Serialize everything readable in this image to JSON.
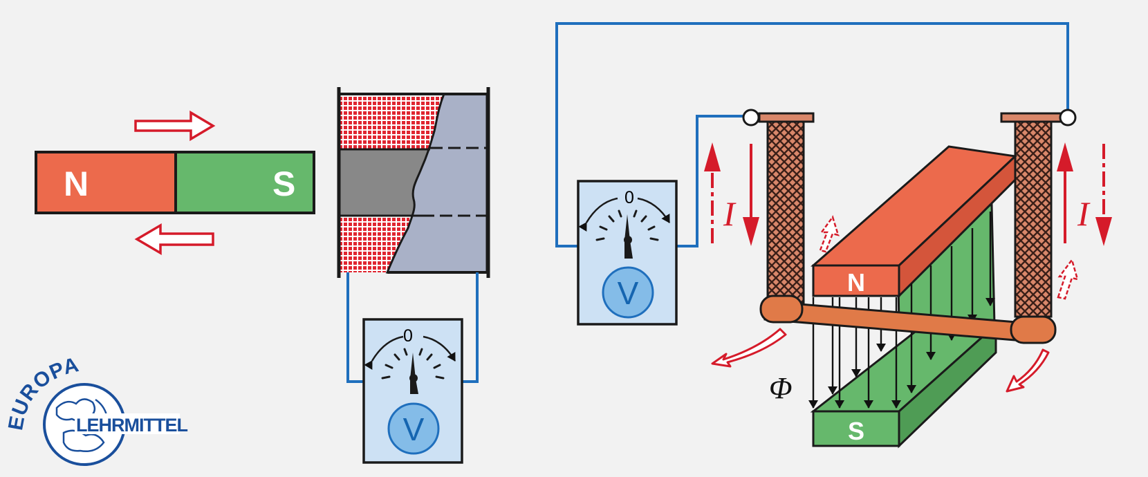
{
  "colors": {
    "north": "#ec6a4c",
    "south": "#66b86c",
    "wire": "#1f6fbd",
    "arrow": "#d51b2a",
    "meter_bg": "#cde1f4",
    "meter_dial": "#84bce8",
    "coil_body": "#c9c4cc",
    "coil_hatch": "#e02530",
    "core": "#888888",
    "rod": "#e07a48",
    "winding": "#d9876a",
    "logo": "#1a4f9c"
  },
  "bar_magnet": {
    "north_label": "N",
    "south_label": "S"
  },
  "meter_left": {
    "zero_label": "0",
    "unit_label": "V"
  },
  "meter_right": {
    "zero_label": "0",
    "unit_label": "V"
  },
  "horseshoe_magnet": {
    "north_label": "N",
    "south_label": "S",
    "flux_symbol": "Φ"
  },
  "current_labels": {
    "left": "I",
    "right": "I"
  },
  "logo": {
    "top_text": "EUROPA",
    "bottom_text": "LEHRMITTEL"
  }
}
